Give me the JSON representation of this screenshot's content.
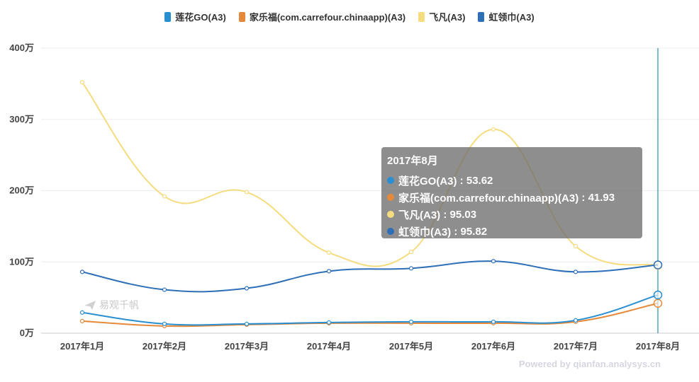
{
  "legend": [
    {
      "label": "莲花GO(A3)",
      "color": "#2a8fd0"
    },
    {
      "label": "家乐福(com.carrefour.chinaapp)(A3)",
      "color": "#e48a3a"
    },
    {
      "label": "飞凡(A3)",
      "color": "#f5dc7f"
    },
    {
      "label": "虹领巾(A3)",
      "color": "#2e6fb7"
    }
  ],
  "chart_data": {
    "type": "line",
    "categories": [
      "2017年1月",
      "2017年2月",
      "2017年3月",
      "2017年4月",
      "2017年5月",
      "2017年6月",
      "2017年7月",
      "2017年8月"
    ],
    "y_ticks": [
      {
        "value": 0,
        "label": "0万"
      },
      {
        "value": 100,
        "label": "100万"
      },
      {
        "value": 200,
        "label": "200万"
      },
      {
        "value": 300,
        "label": "300万"
      },
      {
        "value": 400,
        "label": "400万"
      }
    ],
    "ylim": [
      0,
      400
    ],
    "unit": "万",
    "grid": true,
    "series": [
      {
        "name": "莲花GO(A3)",
        "color": "#2a8fd0",
        "values": [
          29,
          13,
          13,
          15,
          16,
          16,
          18,
          53.62
        ]
      },
      {
        "name": "家乐福(com.carrefour.chinaapp)(A3)",
        "color": "#e48a3a",
        "values": [
          17,
          10,
          12,
          14,
          14,
          14,
          16,
          41.93
        ]
      },
      {
        "name": "飞凡(A3)",
        "color": "#f5dc7f",
        "values": [
          352,
          192,
          198,
          113,
          114,
          286,
          122,
          95.03
        ]
      },
      {
        "name": "虹领巾(A3)",
        "color": "#2e6fb7",
        "values": [
          86,
          61,
          63,
          87,
          91,
          101,
          86,
          95.82
        ]
      }
    ],
    "highlight_index": 7
  },
  "tooltip": {
    "title": "2017年8月",
    "rows": [
      {
        "label": "莲花GO(A3)",
        "value": "53.62",
        "color": "#2a8fd0"
      },
      {
        "label": "家乐福(com.carrefour.chinaapp)(A3)",
        "value": "41.93",
        "color": "#e48a3a"
      },
      {
        "label": "飞凡(A3)",
        "value": "95.03",
        "color": "#f5dc7f"
      },
      {
        "label": "虹领巾(A3)",
        "value": "95.82",
        "color": "#2e6fb7"
      }
    ]
  },
  "watermark": "易观千帆",
  "footer": "Powered by qianfan.analysys.cn"
}
